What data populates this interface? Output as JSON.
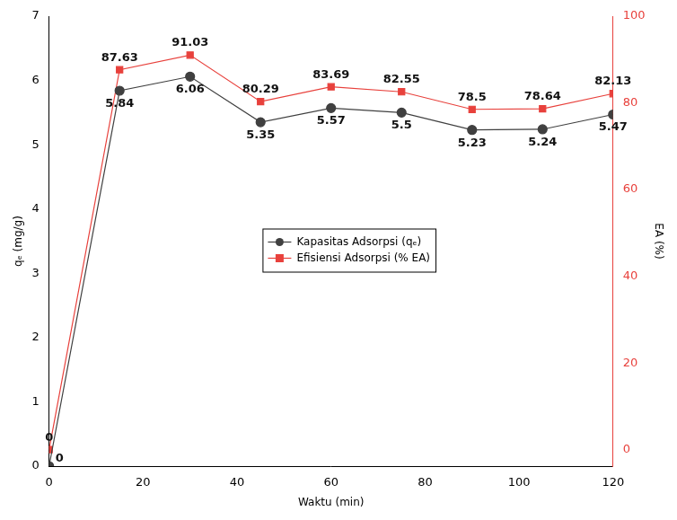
{
  "chart_data": {
    "type": "line",
    "x_label": "Waktu (min)",
    "y_label": "qₑ (mg/g)",
    "y2_label": "EA (%)",
    "x": [
      0,
      15,
      30,
      45,
      60,
      75,
      90,
      105,
      120
    ],
    "xlim": [
      0,
      120
    ],
    "xticks": [
      0,
      20,
      40,
      60,
      80,
      100,
      120
    ],
    "ylim": [
      0,
      7
    ],
    "yticks": [
      0,
      1,
      2,
      3,
      4,
      5,
      6,
      7
    ],
    "y2lim": [
      -3.8,
      100
    ],
    "y2ticks": [
      0,
      20,
      40,
      60,
      80,
      100
    ],
    "grid": false,
    "legend": "center",
    "data_labels": true,
    "series": [
      {
        "name": "Kapasitas Adsorpsi (qₑ)",
        "color": "#404040",
        "marker": "circle",
        "line_style": "solid",
        "values": [
          0,
          5.84,
          6.06,
          5.35,
          5.57,
          5.5,
          5.23,
          5.24,
          5.47
        ]
      },
      {
        "name": "Efisiensi Adsorpsi (% EA)",
        "color": "#e8413c",
        "marker": "square",
        "line_style": "solid",
        "axis": "y2",
        "values": [
          0,
          87.63,
          91.03,
          80.29,
          83.69,
          82.55,
          78.5,
          78.64,
          82.13
        ]
      }
    ]
  }
}
